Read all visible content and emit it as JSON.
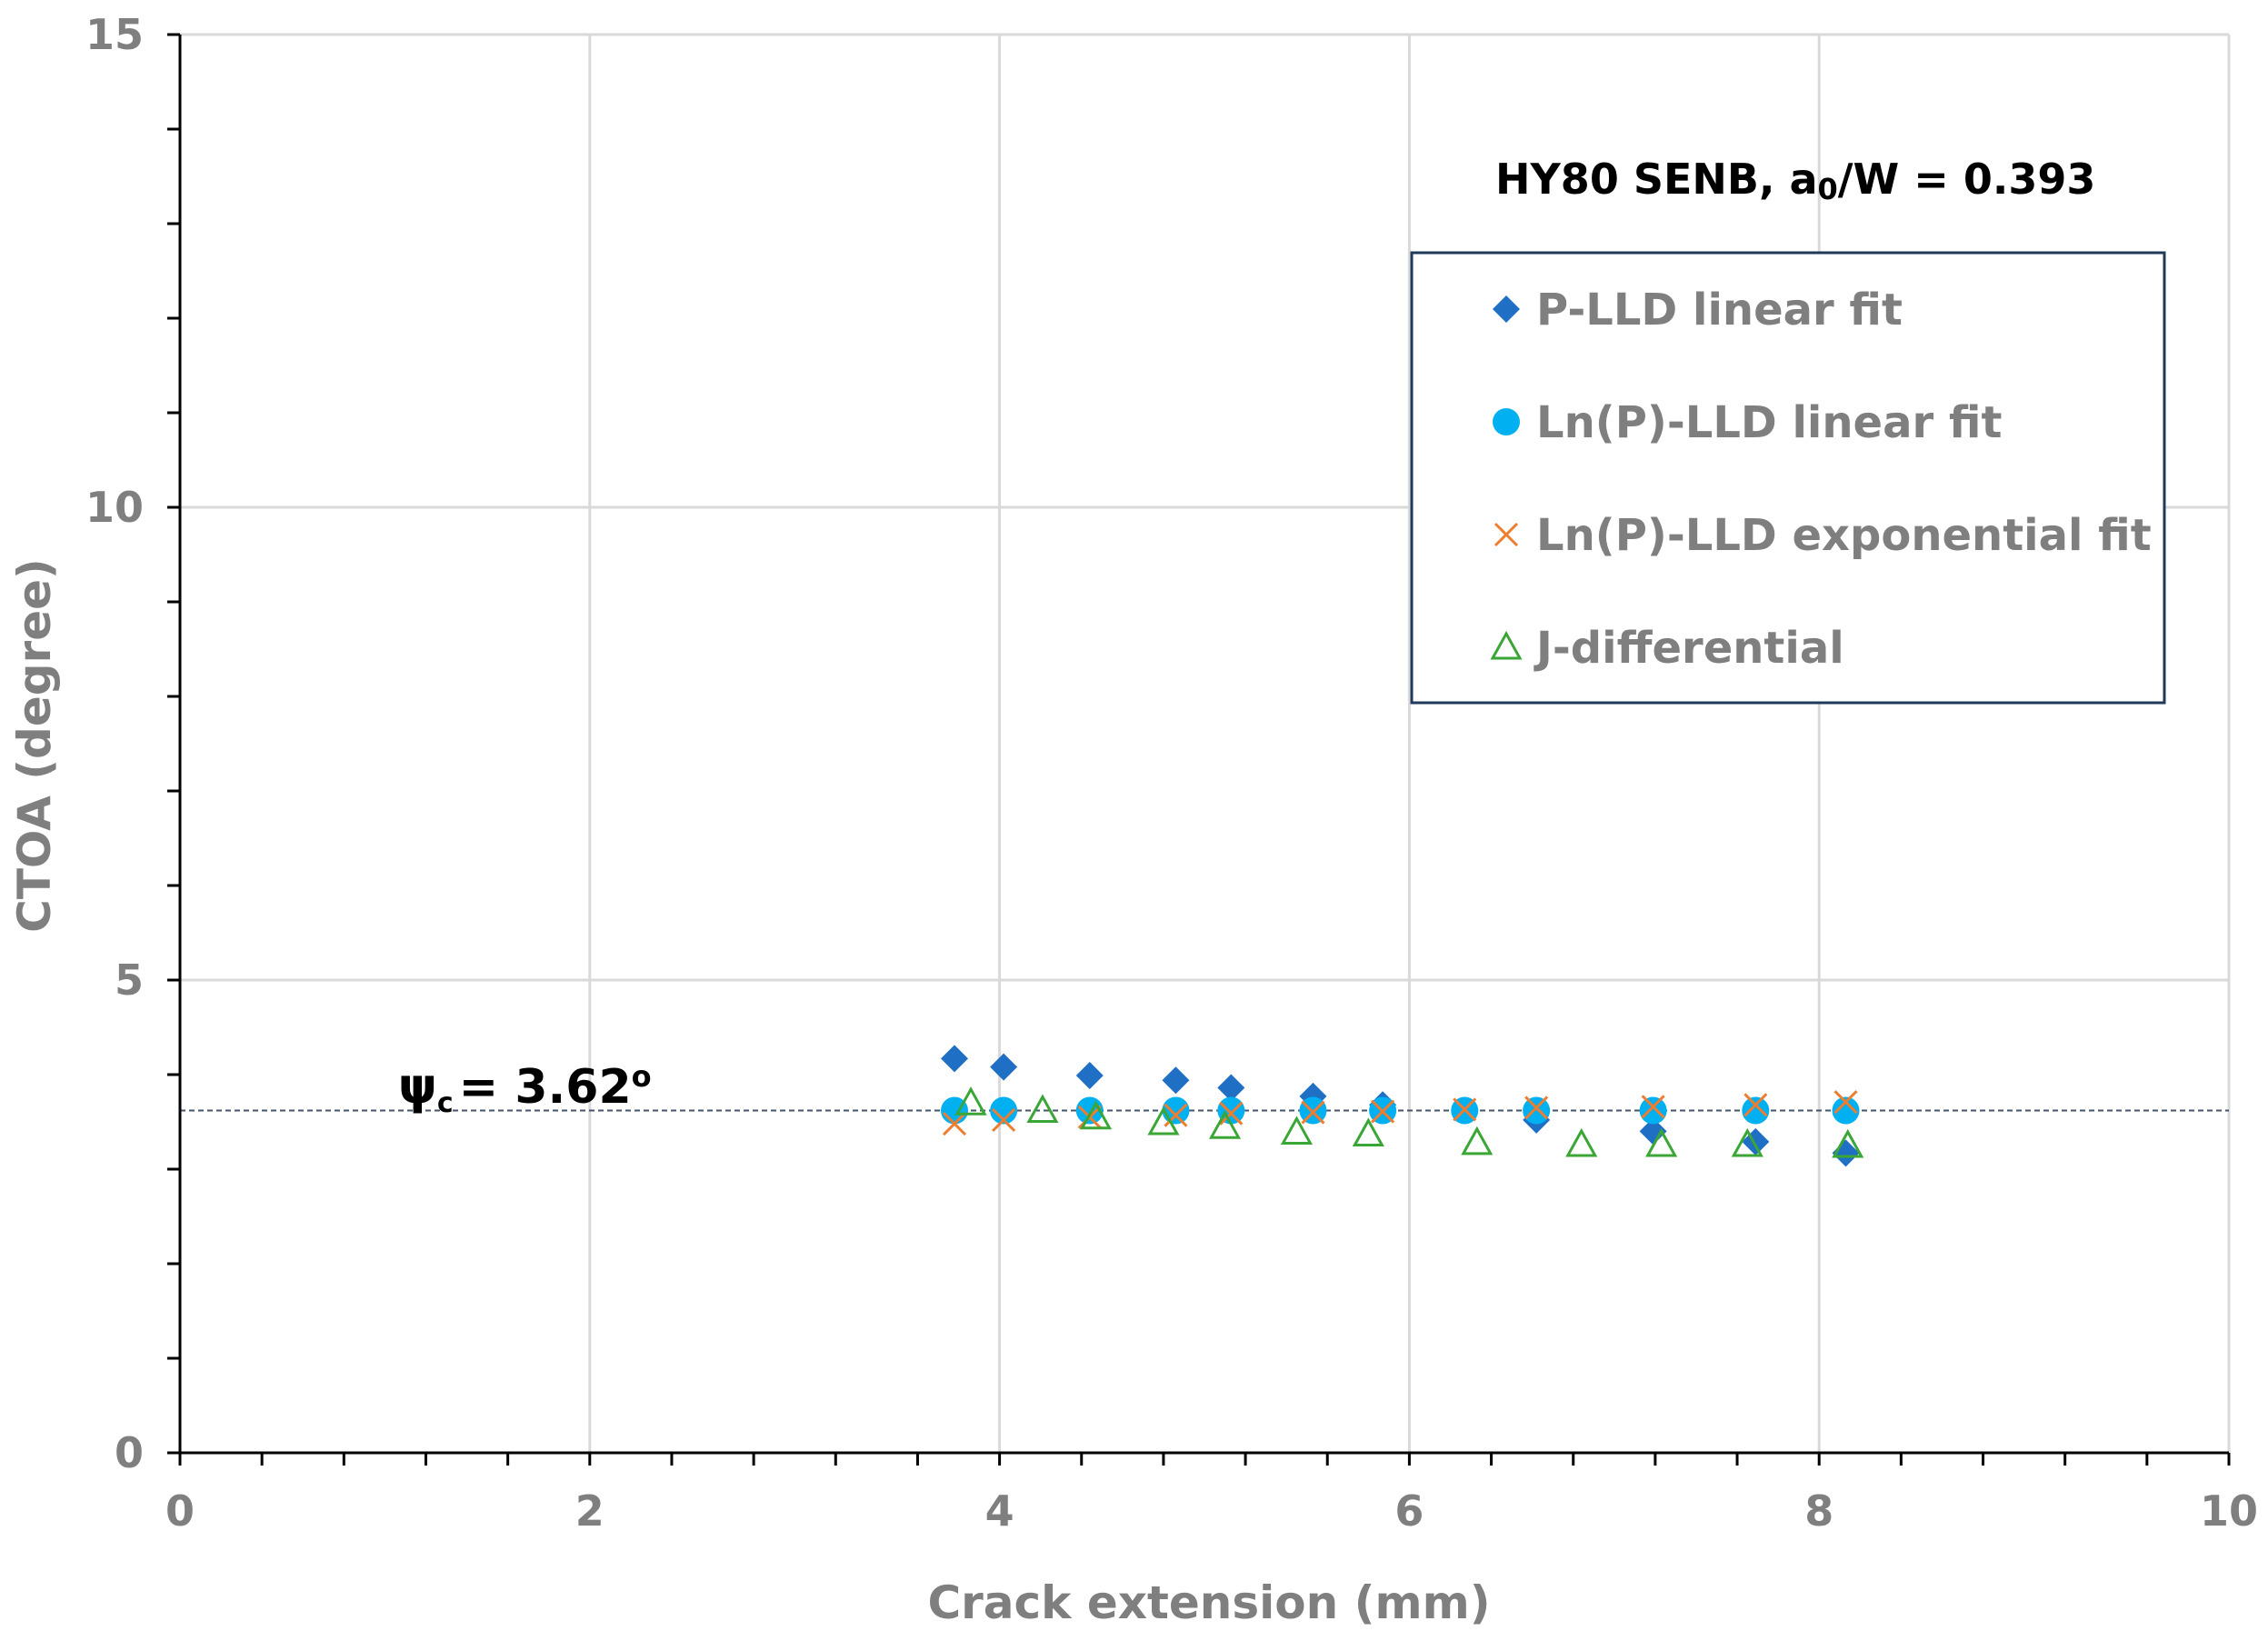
{
  "chart_data": {
    "type": "scatter",
    "title_prefix": "HY80 SENB, a",
    "title_subscript": "0",
    "title_suffix": "/W = 0.393",
    "xlabel": "Crack extension (mm)",
    "ylabel": "CTOA (degree)",
    "xlim": [
      0,
      10
    ],
    "ylim": [
      0,
      15
    ],
    "x_ticks": [
      0,
      2,
      4,
      6,
      8,
      10
    ],
    "y_ticks": [
      0,
      5,
      10,
      15
    ],
    "x_tick_labels": [
      "0",
      "2",
      "4",
      "6",
      "8",
      "10"
    ],
    "y_tick_labels": [
      "0",
      "5",
      "10",
      "15"
    ],
    "grid": true,
    "legend_position": "top-right",
    "series": [
      {
        "name": "P-LLD linear fit",
        "marker": "diamond",
        "color": "#1f6fc5",
        "x": [
          3.78,
          4.02,
          4.44,
          4.86,
          5.13,
          5.53,
          5.87,
          6.27,
          6.62,
          7.19,
          7.69,
          8.13
        ],
        "y": [
          4.17,
          4.08,
          3.99,
          3.94,
          3.86,
          3.77,
          3.68,
          3.62,
          3.52,
          3.4,
          3.29,
          3.17
        ]
      },
      {
        "name": "Ln(P)-LLD linear fit",
        "marker": "circle",
        "color": "#00b0f0",
        "x": [
          3.78,
          4.02,
          4.44,
          4.86,
          5.13,
          5.53,
          5.87,
          6.27,
          6.62,
          7.19,
          7.69,
          8.13
        ],
        "y": [
          3.62,
          3.62,
          3.62,
          3.62,
          3.62,
          3.62,
          3.62,
          3.62,
          3.62,
          3.62,
          3.62,
          3.62
        ]
      },
      {
        "name": "Ln(P)-LLD exponential fit",
        "marker": "x",
        "color": "#ed7d31",
        "x": [
          3.78,
          4.02,
          4.44,
          4.86,
          5.13,
          5.53,
          5.87,
          6.27,
          6.62,
          7.19,
          7.69,
          8.13
        ],
        "y": [
          3.48,
          3.52,
          3.55,
          3.57,
          3.59,
          3.6,
          3.61,
          3.63,
          3.65,
          3.66,
          3.68,
          3.71
        ]
      },
      {
        "name": "J-differential",
        "marker": "triangle",
        "color": "#3aa635",
        "x": [
          3.86,
          4.21,
          4.47,
          4.8,
          5.1,
          5.45,
          5.8,
          6.33,
          6.84,
          7.23,
          7.65,
          8.14
        ],
        "y": [
          3.7,
          3.62,
          3.55,
          3.49,
          3.45,
          3.39,
          3.37,
          3.28,
          3.26,
          3.26,
          3.26,
          3.25
        ]
      }
    ],
    "reference_line": {
      "y": 3.62,
      "style": "dashed",
      "color": "#44546a"
    },
    "annotation": {
      "symbol": "ψ",
      "subscript": "c",
      "value": "= 3.62",
      "superscript": "o"
    }
  }
}
